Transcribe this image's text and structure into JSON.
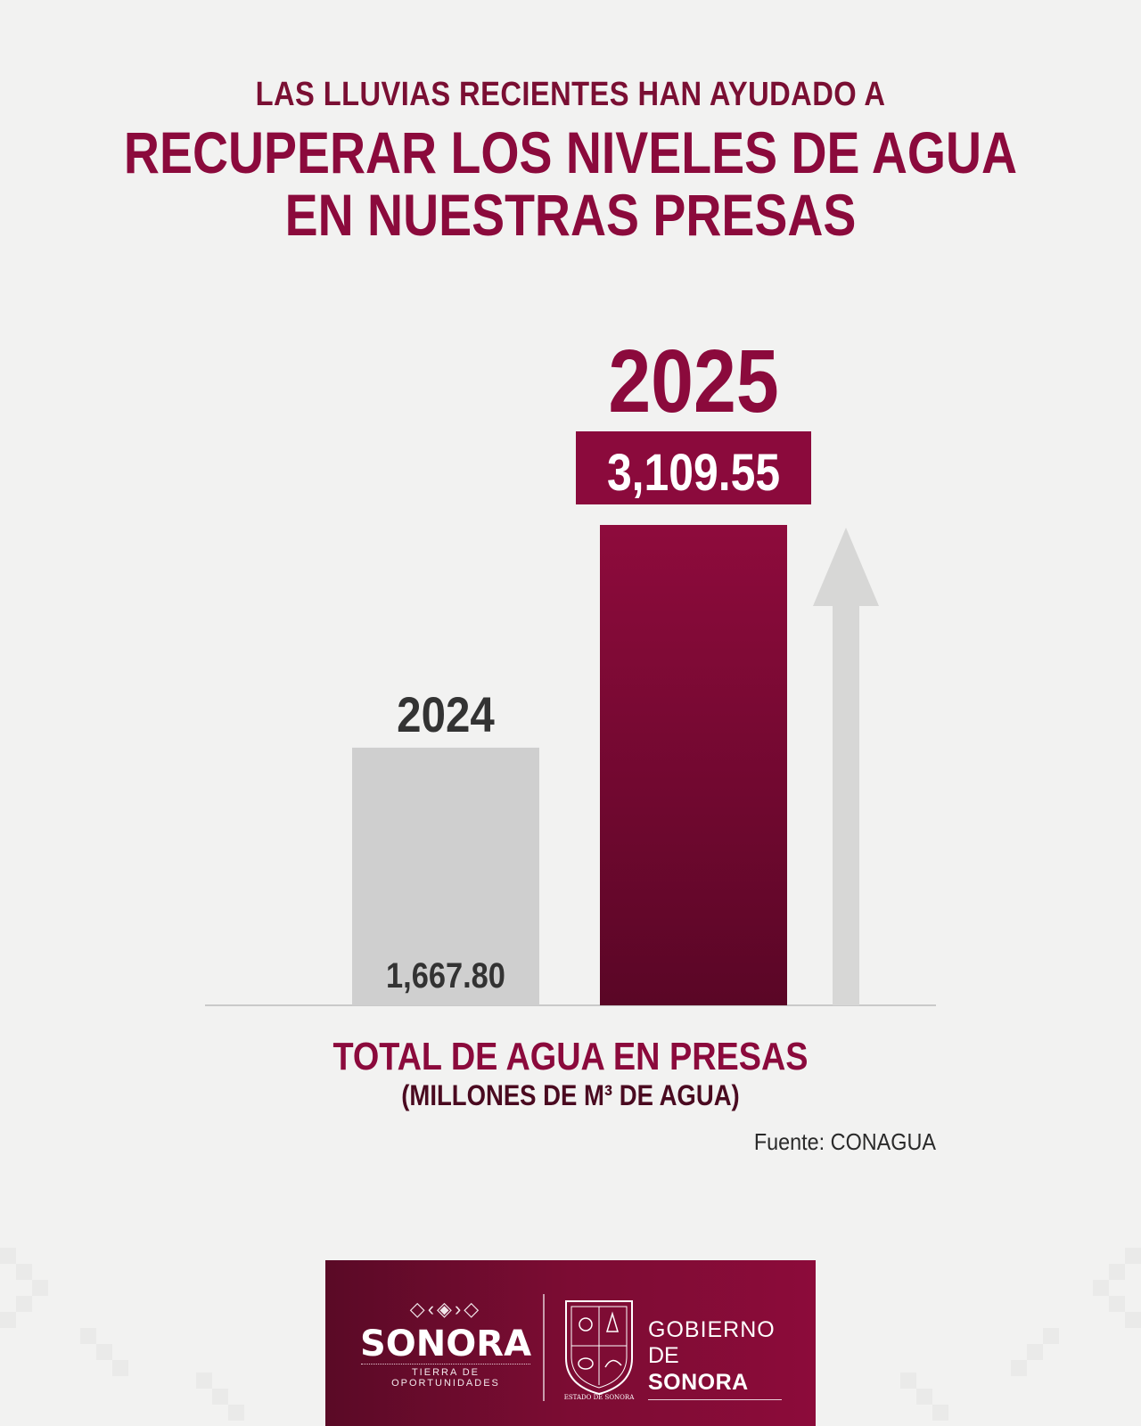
{
  "headline": {
    "line1": "LAS LLUVIAS RECIENTES HAN AYUDADO A",
    "line2": "RECUPERAR LOS NIVELES DE AGUA",
    "line3": "EN NUESTRAS PRESAS"
  },
  "chart_data": {
    "type": "bar",
    "categories": [
      "2024",
      "2025"
    ],
    "values": [
      1667.8,
      3109.55
    ],
    "value_labels": [
      "1,667.80",
      "3,109.55"
    ],
    "xlabel": "TOTAL DE AGUA EN PRESAS",
    "xlabel_sub": "(MILLONES DE M³ DE AGUA)",
    "ylim": [
      0,
      3109.55
    ],
    "grid": false,
    "legend": "none",
    "bar_colors": [
      "#cfcfcf",
      "#8b0a3c"
    ],
    "highlight_color": "#8b0a3c",
    "trend": "up-arrow"
  },
  "source": "Fuente: CONAGUA",
  "footer": {
    "logo_word": "SONORA",
    "logo_glyphs": "◇‹◈›◇",
    "logo_tagline": "TIERRA DE OPORTUNIDADES",
    "seal_label": "ESTADO DE SONORA",
    "gob_line1": "GOBIERNO",
    "gob_de": "DE",
    "gob_sonora": "SONORA"
  },
  "colors": {
    "brand": "#8b0a3c",
    "brand_dark": "#5a0a26",
    "grey_bar": "#cfcfcf",
    "text_dark": "#333333"
  }
}
